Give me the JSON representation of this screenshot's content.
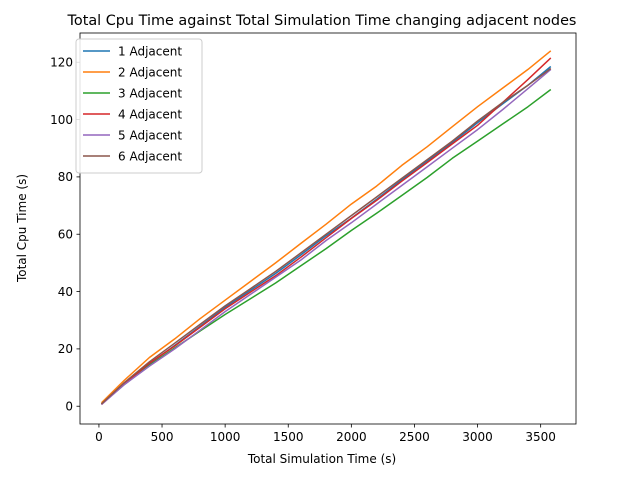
{
  "chart_data": {
    "type": "line",
    "title": "Total Cpu Time against Total Simulation Time changing adjacent nodes",
    "xlabel": "Total Simulation Time (s)",
    "ylabel": "Total Cpu Time (s)",
    "xlim": [
      -150,
      3780
    ],
    "ylim": [
      -6.2,
      130.2
    ],
    "xticks": [
      0,
      500,
      1000,
      1500,
      2000,
      2500,
      3000,
      3500
    ],
    "yticks": [
      0,
      20,
      40,
      60,
      80,
      100,
      120
    ],
    "grid": false,
    "legend_position": "top-left",
    "x": [
      20,
      200,
      400,
      600,
      800,
      1000,
      1200,
      1400,
      1600,
      1800,
      2000,
      2200,
      2400,
      2600,
      2800,
      3000,
      3200,
      3400,
      3580
    ],
    "series": [
      {
        "name": "1 Adjacent",
        "color": "#1f77b4",
        "values": [
          0.8,
          8.0,
          14.8,
          21.2,
          27.8,
          34.5,
          40.4,
          46.3,
          52.8,
          59.5,
          65.6,
          72.2,
          79.0,
          85.5,
          92.0,
          98.9,
          105.5,
          112.0,
          118.5
        ]
      },
      {
        "name": "2 Adjacent",
        "color": "#ff7f0e",
        "values": [
          1.2,
          9.0,
          17.0,
          23.5,
          30.5,
          37.0,
          43.5,
          50.0,
          56.8,
          63.5,
          70.5,
          76.8,
          84.0,
          90.5,
          97.5,
          104.5,
          111.0,
          117.5,
          124.0
        ]
      },
      {
        "name": "3 Adjacent",
        "color": "#2ca02c",
        "values": [
          0.8,
          7.5,
          14.3,
          20.3,
          26.2,
          32.0,
          37.5,
          43.0,
          49.0,
          55.0,
          61.3,
          67.3,
          73.5,
          79.8,
          86.5,
          92.5,
          98.5,
          104.5,
          110.5
        ]
      },
      {
        "name": "4 Adjacent",
        "color": "#d62728",
        "values": [
          0.6,
          7.8,
          15.0,
          21.0,
          27.5,
          34.0,
          39.8,
          45.5,
          52.0,
          58.8,
          65.5,
          71.8,
          78.5,
          85.0,
          91.5,
          98.0,
          106.0,
          114.0,
          121.5
        ]
      },
      {
        "name": "5 Adjacent",
        "color": "#9467bd",
        "values": [
          0.6,
          7.5,
          14.0,
          20.0,
          26.5,
          33.0,
          39.0,
          45.0,
          51.0,
          57.8,
          64.0,
          70.5,
          77.0,
          83.5,
          90.0,
          96.5,
          103.5,
          110.8,
          117.5
        ]
      },
      {
        "name": "6 Adjacent",
        "color": "#8c564b",
        "values": [
          0.8,
          8.2,
          15.5,
          22.0,
          28.5,
          35.0,
          41.0,
          47.0,
          53.5,
          60.0,
          66.5,
          73.0,
          79.5,
          86.0,
          92.5,
          99.5,
          106.0,
          112.0,
          117.8
        ]
      }
    ]
  }
}
